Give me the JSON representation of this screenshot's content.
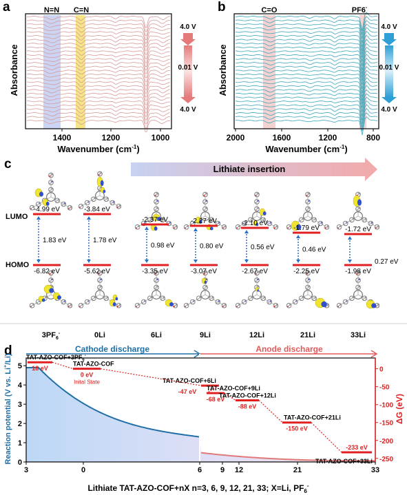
{
  "panels": {
    "a": "a",
    "b": "b",
    "c": "c",
    "d": "d"
  },
  "panel_a": {
    "ylabel": "Absorbance",
    "xlabel": "Wavenumber (cm",
    "xlabel_sup": "-1",
    "xlabel_end": ")",
    "ticks": [
      "1400",
      "1200",
      "1000"
    ],
    "band1": "N=N",
    "band2": "C=N",
    "v_top": "4.0 V",
    "v_mid": "0.01 V",
    "v_bot": "4.0 V",
    "line_color": "#d99a9a"
  },
  "panel_b": {
    "ylabel": "Absorbance",
    "xlabel": "Wavenumber (cm",
    "xlabel_sup": "-1",
    "xlabel_end": ")",
    "ticks": [
      "2000",
      "1600",
      "1200",
      "800"
    ],
    "band1": "C=O",
    "band2": "PF6",
    "band2_sup": "-",
    "v_top": "4.0 V",
    "v_mid": "0.01 V",
    "v_bot": "4.0 V",
    "line_color": "#3aa6b9"
  },
  "panel_c": {
    "banner": "Lithiate insertion",
    "lumo": "LUMO",
    "homo": "HOMO",
    "states": [
      {
        "name": "3PF",
        "sub": "6",
        "sup": "-",
        "lumo": "-4.99 eV",
        "gap": "1.83 eV",
        "homo": "-6.82 eV"
      },
      {
        "name": "0Li",
        "sub": "",
        "sup": "",
        "lumo": "-3.84 eV",
        "gap": "1.78 eV",
        "homo": "-5.62 eV"
      },
      {
        "name": "6Li",
        "sub": "",
        "sup": "",
        "lumo": "-2.37 eV",
        "gap": "0.98 eV",
        "homo": "-3.35 eV"
      },
      {
        "name": "9Li",
        "sub": "",
        "sup": "",
        "lumo": "-2.27 eV",
        "gap": "0.80 eV",
        "homo": "-3.07 eV"
      },
      {
        "name": "12Li",
        "sub": "",
        "sup": "",
        "lumo": "-2.10 eV",
        "gap": "0.56 eV",
        "homo": "-2.67 eV"
      },
      {
        "name": "21Li",
        "sub": "",
        "sup": "",
        "lumo": "-1.79 eV",
        "gap": "0.46 eV",
        "homo": "-2.25 eV"
      },
      {
        "name": "33Li",
        "sub": "",
        "sup": "",
        "lumo": "-1.72 eV",
        "gap": "0.27 eV",
        "homo": "-1.98 eV"
      }
    ]
  },
  "panel_d": {
    "cathode": "Cathode discharge",
    "anode": "Anode discharge",
    "ylabel_left": "Reaction potential (V vs. Li",
    "ylabel_left_sup": "+",
    "ylabel_left_end": "/Li)",
    "ylabel_right": "ΔG (eV)",
    "xlabel": "Lithiate TAT-AZO-COF+nX n=3, 6, 9, 12, 21, 33; X=Li, PF",
    "xlabel_sub": "6",
    "xlabel_sup": "-",
    "left_ticks": [
      "5",
      "4",
      "3",
      "2",
      "1",
      "0"
    ],
    "right_ticks": [
      "0",
      "-50",
      "-100",
      "-150",
      "-200",
      "-250"
    ],
    "x_ticks": [
      "3",
      "0",
      "6",
      "9",
      "12",
      "21",
      "33"
    ],
    "initial_state": "Inital State",
    "states": [
      {
        "label": "TAT-AZO-COF+3PF",
        "sub": "6",
        "sup": "-",
        "energy": "18 eV"
      },
      {
        "label": "TAT-AZO-COF",
        "sub": "",
        "sup": "",
        "energy": "0 eV"
      },
      {
        "label": "TAT-AZO-COF+6Li",
        "sub": "",
        "sup": "",
        "energy": "-47 eV"
      },
      {
        "label": "TAT-AZO-COF+9Li",
        "sub": "",
        "sup": "",
        "energy": "-68 eV"
      },
      {
        "label": "TAT-AZO-COF+12Li",
        "sub": "",
        "sup": "",
        "energy": "-88 eV"
      },
      {
        "label": "TAT-AZO-COF+21Li",
        "sub": "",
        "sup": "",
        "energy": "-150 eV"
      },
      {
        "label": "TAT-AZO-COF+33Li",
        "sub": "",
        "sup": "",
        "energy": "-233 eV"
      }
    ],
    "colors": {
      "cathode": "#1f6fa6",
      "anode": "#e05a5a",
      "level": "#e02020"
    }
  }
}
